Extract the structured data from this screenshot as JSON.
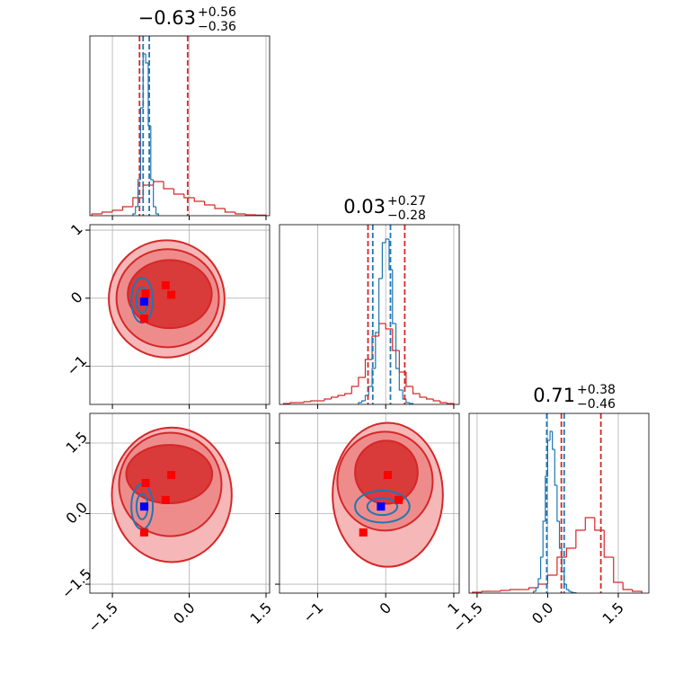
{
  "chart_data": [
    {
      "type": "histogram",
      "title_value": "−0.63",
      "title_plus": "+0.56",
      "title_minus": "−0.36",
      "xlim": [
        -1.94,
        1.57
      ],
      "ylim": [
        0,
        1
      ],
      "xticks": [
        -1.5,
        0,
        1.5
      ],
      "grid": true,
      "series": [
        {
          "color": "#d62728",
          "bins": [
            -1.9,
            -1.7,
            -1.5,
            -1.3,
            -1.1,
            -0.9,
            -0.7,
            -0.5,
            -0.3,
            -0.1,
            0.1,
            0.3,
            0.5,
            0.7,
            0.9,
            1.1,
            1.3,
            1.5
          ],
          "values": [
            0.01,
            0.02,
            0.03,
            0.05,
            0.1,
            0.17,
            0.19,
            0.15,
            0.12,
            0.1,
            0.08,
            0.06,
            0.04,
            0.02,
            0.01,
            0.005,
            0.003
          ],
          "quantiles": [
            -0.97,
            -0.03
          ]
        },
        {
          "color": "#1f77b4",
          "bins": [
            -1.1,
            -1.05,
            -1.0,
            -0.95,
            -0.9,
            -0.85,
            -0.8,
            -0.75,
            -0.7,
            -0.65,
            -0.6
          ],
          "values": [
            0.01,
            0.05,
            0.2,
            0.6,
            0.9,
            0.85,
            0.5,
            0.2,
            0.05,
            0.01
          ],
          "quantiles": [
            -0.9,
            -0.78
          ]
        }
      ]
    },
    {
      "type": "contour",
      "xlim": [
        -1.94,
        1.57
      ],
      "ylim": [
        -1.56,
        1.08
      ],
      "xticks": [
        -1.5,
        0,
        1.5
      ],
      "yticks": [
        {
          "value": 1,
          "label": "1"
        },
        {
          "value": 0,
          "label": "0"
        },
        {
          "value": -1,
          "label": "−1"
        }
      ],
      "grid": true,
      "contours": [
        {
          "color": "#d62728",
          "fill": "#f5b7b7",
          "cx": -0.44,
          "cy": -0.01,
          "rx": 1.13,
          "ry": 0.86
        },
        {
          "color": "#d62728",
          "fill": "#ee8c8c",
          "cx": -0.42,
          "cy": 0.0,
          "rx": 1.0,
          "ry": 0.72
        },
        {
          "color": "#d62728",
          "fill": "#d93a3a",
          "cx": -0.38,
          "cy": 0.06,
          "rx": 0.82,
          "ry": 0.5
        },
        {
          "color": "#1f77b4",
          "fill": "none",
          "cx": -0.92,
          "cy": -0.03,
          "rx": 0.21,
          "ry": 0.33
        },
        {
          "color": "#1f77b4",
          "fill": "none",
          "cx": -0.92,
          "cy": -0.03,
          "rx": 0.11,
          "ry": 0.19
        }
      ],
      "points": [
        {
          "color": "#ff0000",
          "x": -0.85,
          "y": 0.07
        },
        {
          "color": "#ff0000",
          "x": -0.46,
          "y": 0.19
        },
        {
          "color": "#ff0000",
          "x": -0.35,
          "y": 0.05
        },
        {
          "color": "#ff0000",
          "x": -0.88,
          "y": -0.3
        },
        {
          "color": "#0000ff",
          "x": -0.88,
          "y": -0.05
        }
      ]
    },
    {
      "type": "histogram",
      "title_value": "0.03",
      "title_plus": "+0.27",
      "title_minus": "−0.28",
      "xlim": [
        -1.56,
        1.08
      ],
      "ylim": [
        0,
        1
      ],
      "xticks": [
        -1,
        0,
        1
      ],
      "grid": true,
      "series": [
        {
          "color": "#d62728",
          "bins": [
            -1.5,
            -1.4,
            -1.3,
            -1.2,
            -1.1,
            -1.0,
            -0.9,
            -0.8,
            -0.7,
            -0.6,
            -0.5,
            -0.4,
            -0.3,
            -0.2,
            -0.1,
            0.0,
            0.1,
            0.2,
            0.3,
            0.4,
            0.5,
            0.6,
            0.7,
            0.8,
            0.9,
            1.0
          ],
          "values": [
            0.005,
            0.01,
            0.01,
            0.015,
            0.02,
            0.02,
            0.03,
            0.04,
            0.05,
            0.06,
            0.1,
            0.15,
            0.25,
            0.38,
            0.45,
            0.42,
            0.3,
            0.18,
            0.1,
            0.06,
            0.04,
            0.03,
            0.02,
            0.01,
            0.005
          ],
          "quantiles": [
            -0.26,
            0.28
          ]
        },
        {
          "color": "#1f77b4",
          "bins": [
            -0.4,
            -0.35,
            -0.3,
            -0.25,
            -0.2,
            -0.15,
            -0.1,
            -0.05,
            0.0,
            0.05,
            0.1,
            0.15,
            0.2,
            0.25,
            0.3,
            0.35,
            0.4
          ],
          "values": [
            0.01,
            0.02,
            0.05,
            0.1,
            0.2,
            0.4,
            0.7,
            0.9,
            0.92,
            0.75,
            0.45,
            0.2,
            0.08,
            0.03,
            0.01,
            0.005
          ],
          "quantiles": [
            -0.19,
            0.07
          ]
        }
      ]
    },
    {
      "type": "contour",
      "xlim": [
        -1.94,
        1.57
      ],
      "ylim": [
        -1.69,
        2.13
      ],
      "xticks": [
        {
          "value": -1.5,
          "label": "−1.5"
        },
        {
          "value": 0,
          "label": "0.0"
        },
        {
          "value": 1.5,
          "label": "1.5"
        }
      ],
      "yticks": [
        {
          "value": 1.5,
          "label": "1.5"
        },
        {
          "value": 0,
          "label": "0.0"
        },
        {
          "value": -1.5,
          "label": "−1.5"
        }
      ],
      "grid": true,
      "contours": [
        {
          "color": "#d62728",
          "fill": "#f5b7b7",
          "cx": -0.34,
          "cy": 0.4,
          "rx": 1.17,
          "ry": 1.43
        },
        {
          "color": "#d62728",
          "fill": "#ee8c8c",
          "cx": -0.37,
          "cy": 0.62,
          "rx": 1.0,
          "ry": 1.1
        },
        {
          "color": "#d62728",
          "fill": "#d93a3a",
          "cx": -0.39,
          "cy": 0.84,
          "rx": 0.84,
          "ry": 0.62
        },
        {
          "color": "#1f77b4",
          "fill": "none",
          "cx": -0.92,
          "cy": 0.15,
          "rx": 0.21,
          "ry": 0.48
        },
        {
          "color": "#1f77b4",
          "fill": "none",
          "cx": -0.92,
          "cy": 0.15,
          "rx": 0.11,
          "ry": 0.27
        }
      ],
      "points": [
        {
          "color": "#ff0000",
          "x": -0.85,
          "y": 0.65
        },
        {
          "color": "#ff0000",
          "x": -0.35,
          "y": 0.82
        },
        {
          "color": "#ff0000",
          "x": -0.46,
          "y": 0.29
        },
        {
          "color": "#ff0000",
          "x": -0.88,
          "y": -0.4
        },
        {
          "color": "#0000ff",
          "x": -0.88,
          "y": 0.15
        }
      ]
    },
    {
      "type": "contour",
      "xlim": [
        -1.56,
        1.08
      ],
      "ylim": [
        -1.69,
        2.13
      ],
      "xticks": [
        {
          "value": -1,
          "label": "−1"
        },
        {
          "value": 0,
          "label": "0"
        },
        {
          "value": 1,
          "label": "1"
        }
      ],
      "yticks": [
        1.5,
        0,
        -1.5
      ],
      "grid": true,
      "contours": [
        {
          "color": "#d62728",
          "fill": "#f5b7b7",
          "cx": 0.03,
          "cy": 0.4,
          "rx": 0.81,
          "ry": 1.53
        },
        {
          "color": "#d62728",
          "fill": "#ee8c8c",
          "cx": -0.01,
          "cy": 0.69,
          "rx": 0.7,
          "ry": 1.05
        },
        {
          "color": "#d62728",
          "fill": "#d93a3a",
          "cx": 0.01,
          "cy": 0.88,
          "rx": 0.46,
          "ry": 0.67
        },
        {
          "color": "#1f77b4",
          "fill": "none",
          "cx": -0.05,
          "cy": 0.15,
          "rx": 0.4,
          "ry": 0.34
        },
        {
          "color": "#1f77b4",
          "fill": "none",
          "cx": -0.05,
          "cy": 0.15,
          "rx": 0.22,
          "ry": 0.18
        }
      ],
      "points": [
        {
          "color": "#ff0000",
          "x": 0.03,
          "y": 0.82
        },
        {
          "color": "#ff0000",
          "x": 0.19,
          "y": 0.29
        },
        {
          "color": "#ff0000",
          "x": -0.33,
          "y": -0.4
        },
        {
          "color": "#0000ff",
          "x": -0.07,
          "y": 0.15
        }
      ]
    },
    {
      "type": "histogram",
      "title_value": "0.71",
      "title_plus": "+0.38",
      "title_minus": "−0.46",
      "xlim": [
        -1.67,
        2.15
      ],
      "ylim": [
        0,
        1
      ],
      "xticks": [
        {
          "value": -1.5,
          "label": "−1.5"
        },
        {
          "value": 0,
          "label": "0.0"
        },
        {
          "value": 1.5,
          "label": "1.5"
        }
      ],
      "grid": true,
      "series": [
        {
          "color": "#d62728",
          "bins": [
            -1.6,
            -1.4,
            -1.2,
            -1.0,
            -0.8,
            -0.6,
            -0.4,
            -0.2,
            0.0,
            0.2,
            0.4,
            0.6,
            0.8,
            1.0,
            1.2,
            1.4,
            1.6,
            1.8,
            2.0
          ],
          "values": [
            0.005,
            0.01,
            0.01,
            0.015,
            0.02,
            0.02,
            0.03,
            0.05,
            0.1,
            0.2,
            0.25,
            0.35,
            0.42,
            0.35,
            0.2,
            0.06,
            0.02,
            0.01
          ],
          "quantiles": [
            0.29,
            1.13
          ]
        },
        {
          "color": "#1f77b4",
          "bins": [
            -0.3,
            -0.25,
            -0.2,
            -0.15,
            -0.1,
            -0.05,
            0.0,
            0.05,
            0.1,
            0.15,
            0.2,
            0.25,
            0.3,
            0.35,
            0.4,
            0.45,
            0.5,
            0.55,
            0.6
          ],
          "values": [
            0.01,
            0.03,
            0.08,
            0.2,
            0.4,
            0.65,
            0.85,
            0.9,
            0.8,
            0.6,
            0.4,
            0.25,
            0.12,
            0.05,
            0.02,
            0.01,
            0.005,
            0.002
          ],
          "quantiles": [
            -0.02,
            0.35
          ]
        }
      ]
    }
  ]
}
